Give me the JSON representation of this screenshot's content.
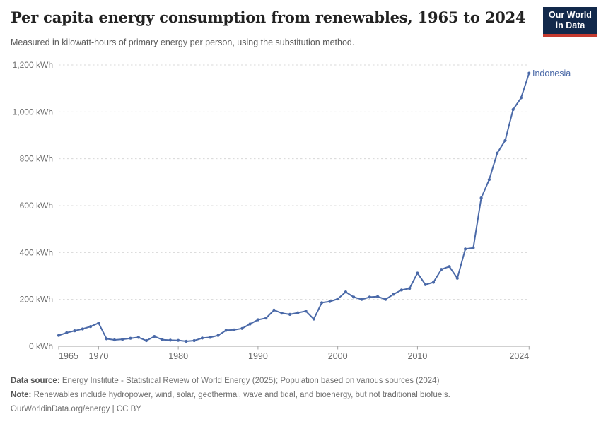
{
  "header": {
    "title": "Per capita energy consumption from renewables, 1965 to 2024",
    "subtitle": "Measured in kilowatt-hours of primary energy per person, using the substitution method.",
    "logo": {
      "line1": "Our World",
      "line2": "in Data",
      "bg_color": "#12294b",
      "accent_color": "#c53a2f"
    }
  },
  "chart_data": {
    "type": "line",
    "title": "Per capita energy consumption from renewables, 1965 to 2024",
    "series_label": "Indonesia",
    "unit": "kWh",
    "line_color": "#4a69a8",
    "grid": "horizontal dashed",
    "legend_position": "end-of-line label",
    "xlabel": "",
    "ylabel": "",
    "xlim": [
      1965,
      2024
    ],
    "ylim": [
      0,
      1200
    ],
    "x": [
      1965,
      1966,
      1967,
      1968,
      1969,
      1970,
      1971,
      1972,
      1973,
      1974,
      1975,
      1976,
      1977,
      1978,
      1979,
      1980,
      1981,
      1982,
      1983,
      1984,
      1985,
      1986,
      1987,
      1988,
      1989,
      1990,
      1991,
      1992,
      1993,
      1994,
      1995,
      1996,
      1997,
      1998,
      1999,
      2000,
      2001,
      2002,
      2003,
      2004,
      2005,
      2006,
      2007,
      2008,
      2009,
      2010,
      2011,
      2012,
      2013,
      2014,
      2015,
      2016,
      2017,
      2018,
      2019,
      2020,
      2021,
      2022,
      2023,
      2024
    ],
    "values": [
      46,
      58,
      66,
      74,
      84,
      99,
      32,
      27,
      30,
      34,
      38,
      24,
      42,
      28,
      26,
      25,
      21,
      24,
      35,
      38,
      46,
      68,
      70,
      76,
      95,
      113,
      120,
      154,
      141,
      136,
      143,
      150,
      116,
      186,
      191,
      202,
      232,
      210,
      200,
      210,
      212,
      200,
      222,
      240,
      247,
      312,
      263,
      273,
      328,
      340,
      290,
      415,
      420,
      633,
      711,
      824,
      878,
      1010,
      1060,
      1165
    ],
    "yticks": [
      0,
      200,
      400,
      600,
      800,
      1000,
      1200
    ],
    "ytick_labels": [
      "0 kWh",
      "200 kWh",
      "400 kWh",
      "600 kWh",
      "800 kWh",
      "1,000 kWh",
      "1,200 kWh"
    ],
    "xticks": [
      1965,
      1970,
      1980,
      1990,
      2000,
      2010,
      2024
    ],
    "xtick_labels": [
      "1965",
      "1970",
      "1980",
      "1990",
      "2000",
      "2010",
      "2024"
    ]
  },
  "footer": {
    "source_label": "Data source:",
    "source_text": " Energy Institute - Statistical Review of World Energy (2025); Population based on various sources (2024)",
    "note_label": "Note:",
    "note_text": " Renewables include hydropower, wind, solar, geothermal, wave and tidal, and bioenergy, but not traditional biofuels.",
    "link": "OurWorldinData.org/energy",
    "separator": " | ",
    "license": "CC BY"
  }
}
